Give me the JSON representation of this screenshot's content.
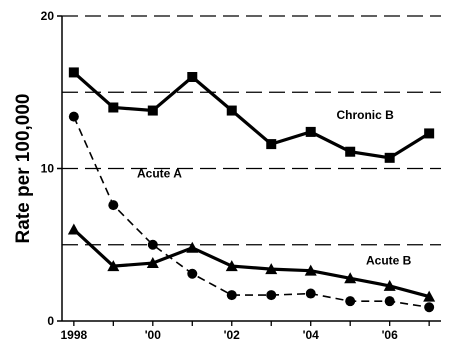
{
  "chart_data": {
    "type": "line",
    "title": "",
    "xlabel": "",
    "ylabel": "Rate per 100,000",
    "xlim": [
      1997.7,
      2007.3
    ],
    "ylim": [
      0,
      20
    ],
    "x_tick_values": [
      1998,
      2000,
      2002,
      2004,
      2006
    ],
    "x_tick_labels": [
      "1998",
      "'00",
      "'02",
      "'04",
      "'06"
    ],
    "y_tick_values": [
      0,
      10,
      20
    ],
    "y_tick_labels": [
      "0",
      "10",
      "20"
    ],
    "grid": "horizontal dashed lines at 5, 10, 15, 20",
    "legend": "none (series labeled inline)",
    "x": [
      1998,
      1999,
      2000,
      2001,
      2002,
      2003,
      2004,
      2005,
      2006,
      2007
    ],
    "series": [
      {
        "name": "Chronic B",
        "marker": "square",
        "line_style": "solid",
        "values": [
          16.3,
          14.0,
          13.8,
          16.0,
          13.8,
          11.6,
          12.4,
          11.1,
          10.7,
          12.3
        ]
      },
      {
        "name": "Acute A",
        "marker": "circle",
        "line_style": "dashed",
        "values": [
          13.4,
          7.6,
          5.0,
          3.1,
          1.7,
          1.7,
          1.8,
          1.3,
          1.3,
          0.9
        ]
      },
      {
        "name": "Acute B",
        "marker": "triangle",
        "line_style": "solid",
        "values": [
          6.0,
          3.6,
          3.8,
          4.8,
          3.6,
          3.4,
          3.3,
          2.8,
          2.3,
          1.6
        ]
      }
    ],
    "colors": {
      "lines": "#000000",
      "grid": "#000000",
      "background": "#ffffff"
    }
  }
}
